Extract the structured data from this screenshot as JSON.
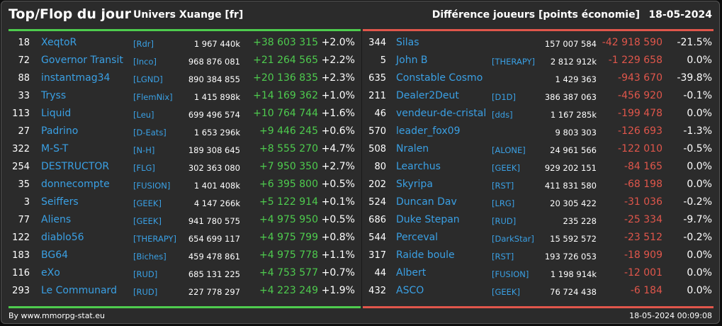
{
  "header": {
    "title": "Top/Flop du jour",
    "universe": "Univers Xuange [fr]",
    "right_title": "Différence joueurs [points économie]",
    "date": "18-05-2024"
  },
  "top": [
    {
      "rank": "18",
      "name": "XeqtoR",
      "tag": "[Rdr]",
      "points": "1 967 440k",
      "diff": "+38 603 315",
      "pct": "+2.0%"
    },
    {
      "rank": "72",
      "name": "Governor Transit",
      "tag": "[Inco]",
      "points": "968 876 081",
      "diff": "+21 264 565",
      "pct": "+2.2%"
    },
    {
      "rank": "88",
      "name": "instantmag34",
      "tag": "[LGND]",
      "points": "890 384 855",
      "diff": "+20 136 835",
      "pct": "+2.3%"
    },
    {
      "rank": "33",
      "name": "Tryss",
      "tag": "[FlemNix]",
      "points": "1 415 898k",
      "diff": "+14 169 362",
      "pct": "+1.0%"
    },
    {
      "rank": "113",
      "name": "Liquid",
      "tag": "[Leu]",
      "points": "699 496 574",
      "diff": "+10 764 744",
      "pct": "+1.6%"
    },
    {
      "rank": "27",
      "name": "Padrino",
      "tag": "[D-Eats]",
      "points": "1 653 296k",
      "diff": "+9 446 245",
      "pct": "+0.6%"
    },
    {
      "rank": "322",
      "name": "M-S-T",
      "tag": "[N-H]",
      "points": "189 308 645",
      "diff": "+8 555 270",
      "pct": "+4.7%"
    },
    {
      "rank": "254",
      "name": "DESTRUCTOR",
      "tag": "[FLG]",
      "points": "302 363 080",
      "diff": "+7 950 350",
      "pct": "+2.7%"
    },
    {
      "rank": "35",
      "name": "donnecompte",
      "tag": "[FUSION]",
      "points": "1 401 408k",
      "diff": "+6 395 800",
      "pct": "+0.5%"
    },
    {
      "rank": "3",
      "name": "Seiffers",
      "tag": "[GEEK]",
      "points": "4 147 266k",
      "diff": "+5 122 914",
      "pct": "+0.1%"
    },
    {
      "rank": "77",
      "name": "Aliens",
      "tag": "[GEEK]",
      "points": "941 780 575",
      "diff": "+4 975 950",
      "pct": "+0.5%"
    },
    {
      "rank": "122",
      "name": "diablo56",
      "tag": "[THERAPY]",
      "points": "654 699 117",
      "diff": "+4 975 799",
      "pct": "+0.8%"
    },
    {
      "rank": "183",
      "name": "BG64",
      "tag": "[Biches]",
      "points": "459 478 861",
      "diff": "+4 975 778",
      "pct": "+1.1%"
    },
    {
      "rank": "116",
      "name": "eXo",
      "tag": "[RUD]",
      "points": "685 131 225",
      "diff": "+4 753 577",
      "pct": "+0.7%"
    },
    {
      "rank": "293",
      "name": "Le Communard",
      "tag": "[RUD]",
      "points": "227 778 297",
      "diff": "+4 223 249",
      "pct": "+1.9%"
    }
  ],
  "flop": [
    {
      "rank": "344",
      "name": "Silas",
      "tag": "",
      "points": "157 007 584",
      "diff": "-42 918 590",
      "pct": "-21.5%"
    },
    {
      "rank": "5",
      "name": "John B",
      "tag": "[THERAPY]",
      "points": "2 812 912k",
      "diff": "-1 229 658",
      "pct": "0.0%"
    },
    {
      "rank": "635",
      "name": "Constable Cosmo",
      "tag": "",
      "points": "1 429 363",
      "diff": "-943 670",
      "pct": "-39.8%"
    },
    {
      "rank": "211",
      "name": "Dealer2Deut",
      "tag": "[D1D]",
      "points": "386 387 063",
      "diff": "-456 920",
      "pct": "-0.1%"
    },
    {
      "rank": "46",
      "name": "vendeur-de-cristal",
      "tag": "[dds]",
      "points": "1 167 285k",
      "diff": "-199 478",
      "pct": "0.0%"
    },
    {
      "rank": "570",
      "name": "leader_fox09",
      "tag": "",
      "points": "9 803 303",
      "diff": "-126 693",
      "pct": "-1.3%"
    },
    {
      "rank": "508",
      "name": "Nralen",
      "tag": "[ALONE]",
      "points": "24 961 566",
      "diff": "-122 010",
      "pct": "-0.5%"
    },
    {
      "rank": "80",
      "name": "Learchus",
      "tag": "[GEEK]",
      "points": "929 202 151",
      "diff": "-84 165",
      "pct": "0.0%"
    },
    {
      "rank": "202",
      "name": "Skyripa",
      "tag": "[RST]",
      "points": "411 831 580",
      "diff": "-68 198",
      "pct": "0.0%"
    },
    {
      "rank": "524",
      "name": "Duncan Dav",
      "tag": "[LRG]",
      "points": "20 305 422",
      "diff": "-31 036",
      "pct": "-0.2%"
    },
    {
      "rank": "686",
      "name": "Duke Stepan",
      "tag": "[RUD]",
      "points": "235 228",
      "diff": "-25 334",
      "pct": "-9.7%"
    },
    {
      "rank": "544",
      "name": "Perceval",
      "tag": "[DarkStar]",
      "points": "15 592 572",
      "diff": "-23 512",
      "pct": "-0.2%"
    },
    {
      "rank": "317",
      "name": "Raide boule",
      "tag": "[RST]",
      "points": "193 726 053",
      "diff": "-18 909",
      "pct": "0.0%"
    },
    {
      "rank": "44",
      "name": "Albert",
      "tag": "[FUSION]",
      "points": "1 198 914k",
      "diff": "-12 001",
      "pct": "0.0%"
    },
    {
      "rank": "432",
      "name": "ASCO",
      "tag": "[GEEK]",
      "points": "76 724 438",
      "diff": "-6 184",
      "pct": "0.0%"
    }
  ],
  "footer": {
    "credit": "By www.mmorpg-stat.eu",
    "timestamp": "18-05-2024 00:09:08"
  },
  "colors": {
    "gain": "#4ecb4e",
    "loss": "#e0564b",
    "link": "#3aa0e4",
    "background": "#2b2b2b"
  }
}
